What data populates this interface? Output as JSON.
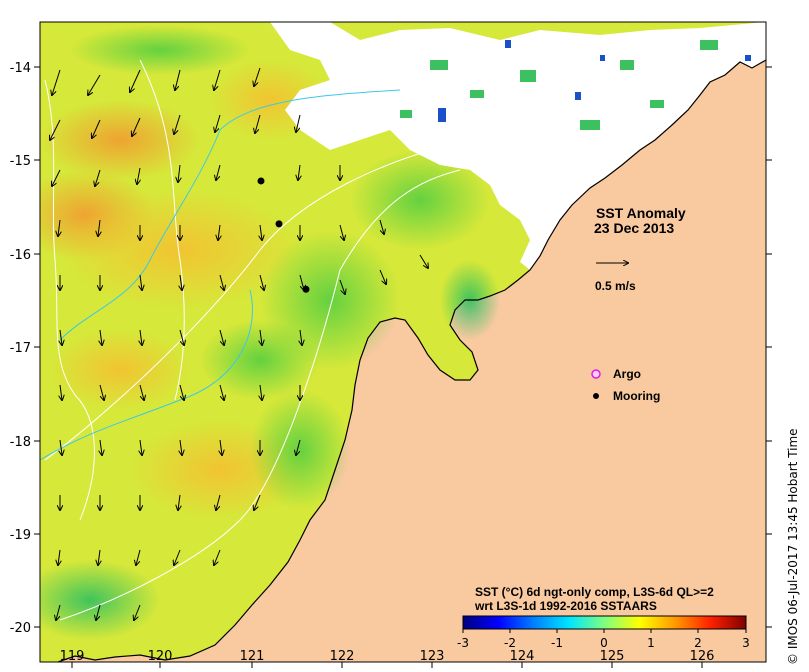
{
  "map": {
    "axes": {
      "x_ticks": [
        "119",
        "120",
        "121",
        "122",
        "123",
        "124",
        "125",
        "126"
      ],
      "y_ticks": [
        "-14",
        "-15",
        "-16",
        "-17",
        "-18",
        "-19",
        "-20"
      ]
    },
    "title_line1": "SST Anomaly",
    "title_line2": "23 Dec 2013",
    "vector_scale_label": "0.5 m/s",
    "legend": {
      "argo_label": "Argo",
      "mooring_label": "Mooring"
    },
    "caption_line1": "SST (°C) 6d ngt-only comp, L3S-6d QL>=2",
    "caption_line2": "wrt L3S-1d 1992-2016 SSTAARS",
    "colorbar": {
      "ticks": [
        "-3",
        "-2",
        "-1",
        "0",
        "1",
        "2",
        "3"
      ],
      "colors": [
        "#00007f",
        "#0000ff",
        "#0080ff",
        "#00e5ff",
        "#7fff7f",
        "#ffff00",
        "#ff9900",
        "#ff2000",
        "#7f0000"
      ]
    },
    "credit": "© IMOS 06-Jul-2017 13:45 Hobart Time",
    "moorings": [
      {
        "lon": 121.1,
        "lat": -15.22
      },
      {
        "lon": 121.3,
        "lat": -15.68
      },
      {
        "lon": 121.6,
        "lat": -16.38
      }
    ],
    "land_color": "#f9c9a0",
    "ocean_base_color": "#d6e83a"
  }
}
